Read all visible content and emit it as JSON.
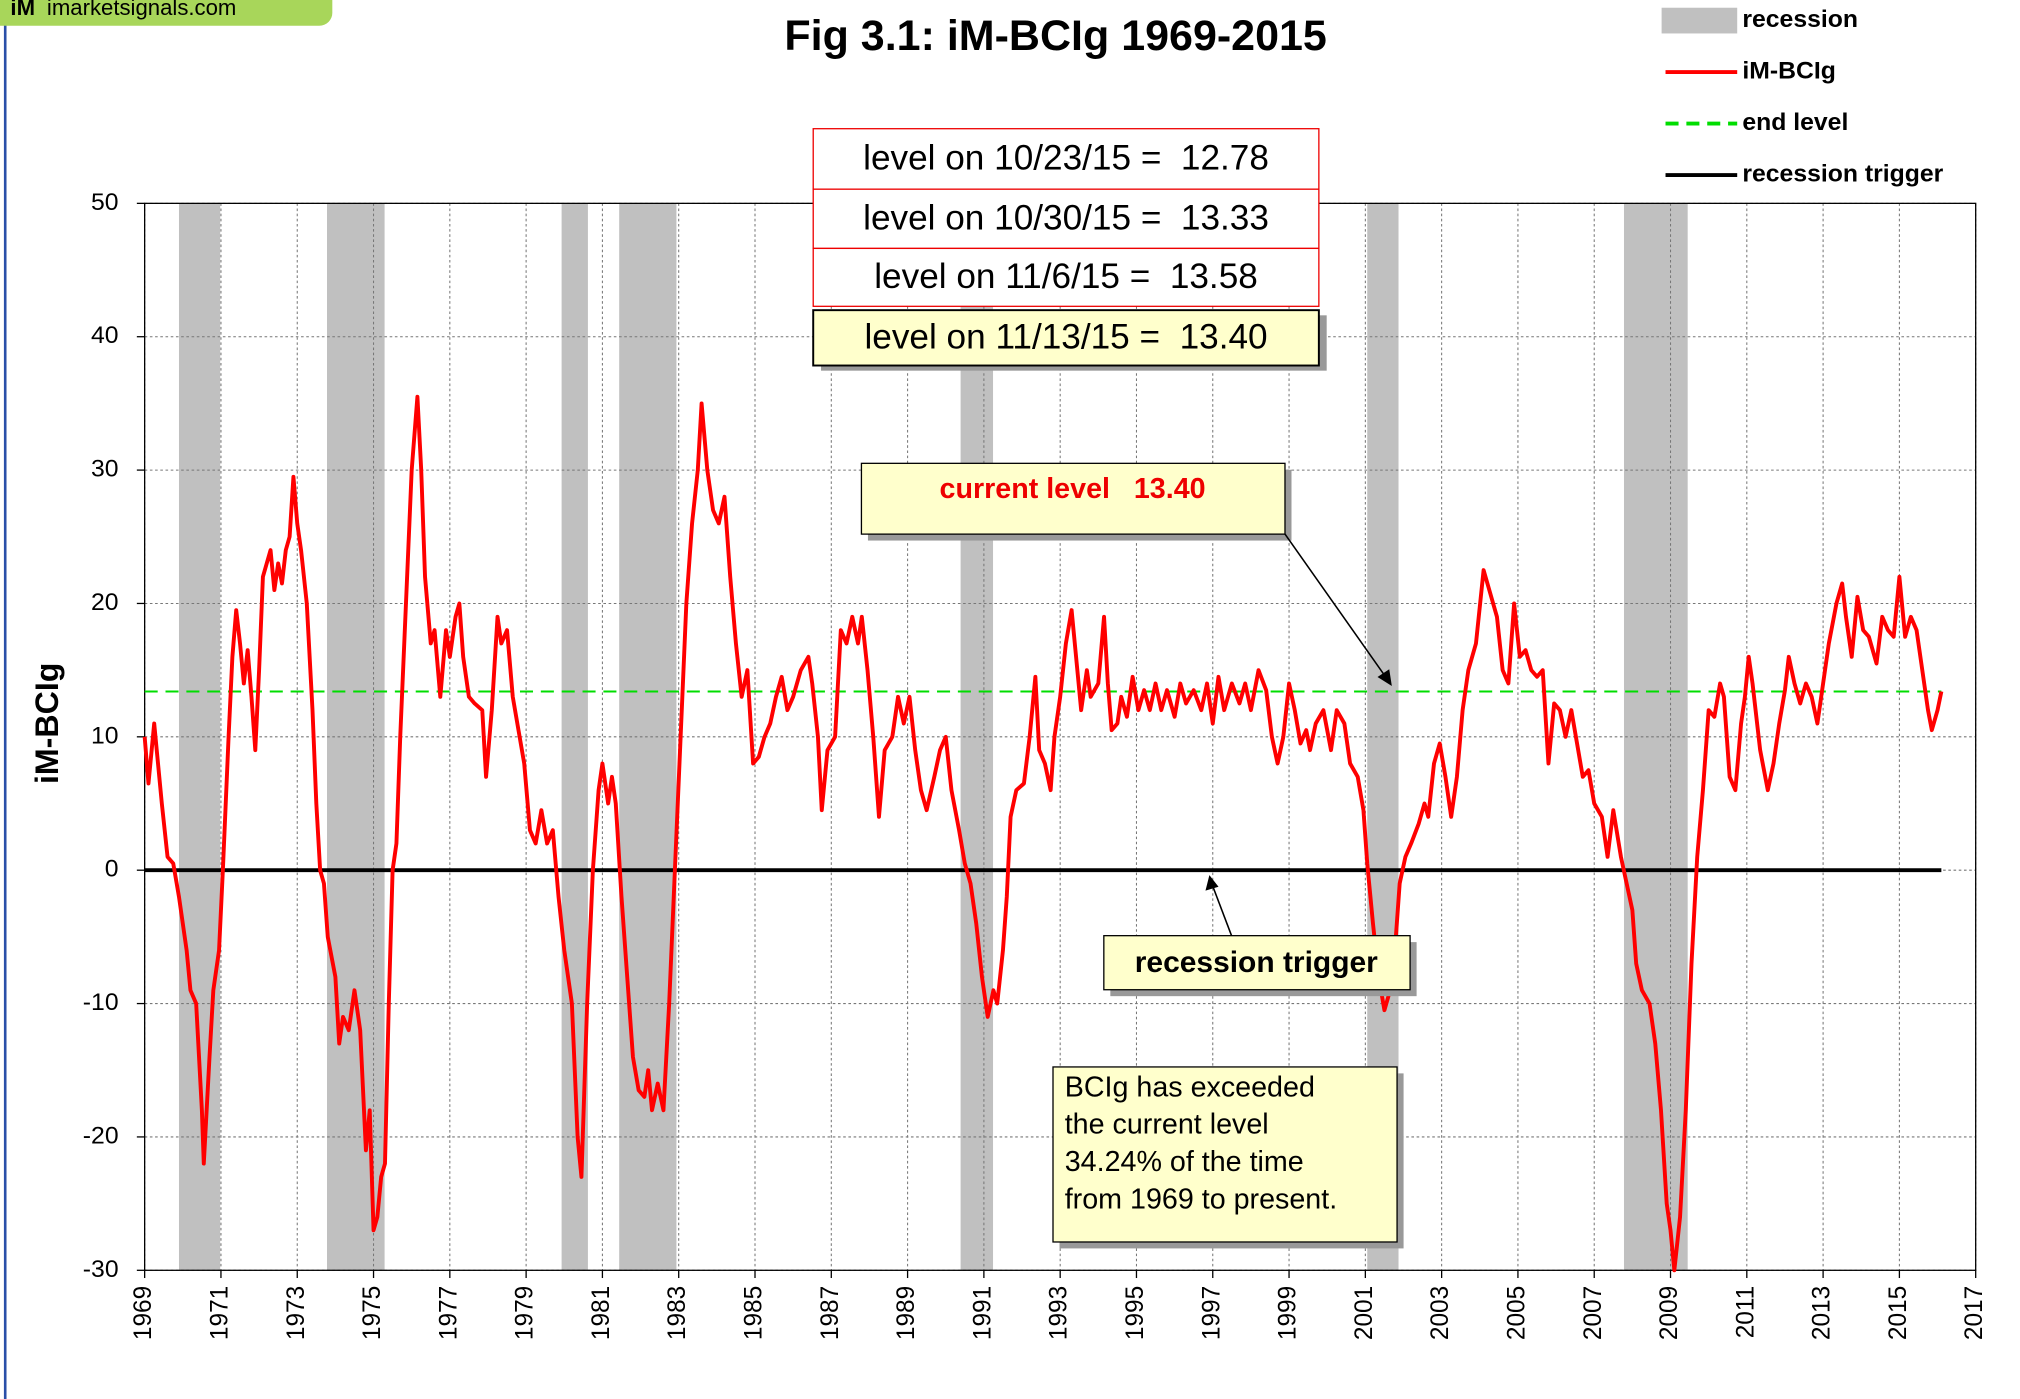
{
  "chart_data": {
    "type": "line",
    "title": "Fig 3.1:  iM-BCIg    1969-2015",
    "logo": {
      "mark": "iM",
      "text": "imarketsignals.com"
    },
    "y_label": "iM-BCIg",
    "xlim": [
      1969,
      2017
    ],
    "ylim": [
      -30,
      50
    ],
    "xticks": [
      1969,
      1971,
      1973,
      1975,
      1977,
      1979,
      1981,
      1983,
      1985,
      1987,
      1989,
      1991,
      1993,
      1995,
      1997,
      1999,
      2001,
      2003,
      2005,
      2007,
      2009,
      2011,
      2013,
      2015,
      2017
    ],
    "yticks": [
      -30,
      -20,
      -10,
      0,
      10,
      20,
      30,
      40,
      50
    ],
    "grid": true,
    "x": [
      1969.0,
      1969.1,
      1969.25,
      1969.45,
      1969.6,
      1969.75,
      1969.9,
      1970.1,
      1970.2,
      1970.35,
      1970.5,
      1970.55,
      1970.7,
      1970.8,
      1970.95,
      1971.05,
      1971.2,
      1971.3,
      1971.4,
      1971.5,
      1971.6,
      1971.7,
      1971.8,
      1971.9,
      1972.0,
      1972.1,
      1972.3,
      1972.4,
      1972.5,
      1972.6,
      1972.7,
      1972.8,
      1972.9,
      1973.0,
      1973.1,
      1973.25,
      1973.4,
      1973.5,
      1973.6,
      1973.7,
      1973.8,
      1974.0,
      1974.1,
      1974.2,
      1974.35,
      1974.5,
      1974.65,
      1974.8,
      1974.9,
      1975.0,
      1975.1,
      1975.2,
      1975.3,
      1975.4,
      1975.5,
      1975.6,
      1975.7,
      1975.85,
      1976.0,
      1976.15,
      1976.25,
      1976.35,
      1976.5,
      1976.6,
      1976.75,
      1976.9,
      1977.0,
      1977.15,
      1977.25,
      1977.35,
      1977.5,
      1977.65,
      1977.85,
      1977.95,
      1978.1,
      1978.25,
      1978.35,
      1978.5,
      1978.65,
      1978.8,
      1978.95,
      1979.1,
      1979.25,
      1979.4,
      1979.55,
      1979.7,
      1979.85,
      1980.0,
      1980.2,
      1980.35,
      1980.45,
      1980.6,
      1980.75,
      1980.9,
      1981.0,
      1981.15,
      1981.25,
      1981.35,
      1981.5,
      1981.65,
      1981.8,
      1981.95,
      1982.1,
      1982.2,
      1982.3,
      1982.45,
      1982.6,
      1982.75,
      1982.9,
      1983.05,
      1983.2,
      1983.35,
      1983.5,
      1983.6,
      1983.75,
      1983.9,
      1984.05,
      1984.2,
      1984.35,
      1984.5,
      1984.65,
      1984.8,
      1984.95,
      1985.1,
      1985.25,
      1985.4,
      1985.55,
      1985.7,
      1985.85,
      1986.0,
      1986.2,
      1986.4,
      1986.5,
      1986.65,
      1986.75,
      1986.9,
      1987.1,
      1987.25,
      1987.4,
      1987.55,
      1987.7,
      1987.8,
      1987.95,
      1988.1,
      1988.25,
      1988.4,
      1988.6,
      1988.75,
      1988.9,
      1989.05,
      1989.2,
      1989.35,
      1989.5,
      1989.7,
      1989.85,
      1990.0,
      1990.15,
      1990.35,
      1990.5,
      1990.65,
      1990.8,
      1990.95,
      1991.1,
      1991.25,
      1991.35,
      1991.5,
      1991.6,
      1991.7,
      1991.85,
      1992.05,
      1992.2,
      1992.35,
      1992.45,
      1992.6,
      1992.75,
      1992.85,
      1993.0,
      1993.15,
      1993.3,
      1993.4,
      1993.55,
      1993.7,
      1993.8,
      1994.0,
      1994.15,
      1994.25,
      1994.35,
      1994.5,
      1994.6,
      1994.75,
      1994.9,
      1995.05,
      1995.2,
      1995.35,
      1995.5,
      1995.65,
      1995.8,
      1996.0,
      1996.15,
      1996.3,
      1996.5,
      1996.7,
      1996.85,
      1997.0,
      1997.15,
      1997.3,
      1997.5,
      1997.7,
      1997.85,
      1998.0,
      1998.2,
      1998.4,
      1998.55,
      1998.7,
      1998.85,
      1999.0,
      1999.15,
      1999.3,
      1999.45,
      1999.55,
      1999.7,
      1999.9,
      2000.1,
      2000.25,
      2000.45,
      2000.6,
      2000.8,
      2000.95,
      2001.05,
      2001.2,
      2001.35,
      2001.5,
      2001.65,
      2001.8,
      2001.9,
      2002.05,
      2002.2,
      2002.4,
      2002.55,
      2002.65,
      2002.8,
      2002.95,
      2003.1,
      2003.25,
      2003.4,
      2003.55,
      2003.7,
      2003.9,
      2004.1,
      2004.25,
      2004.45,
      2004.6,
      2004.75,
      2004.9,
      2005.05,
      2005.2,
      2005.35,
      2005.5,
      2005.65,
      2005.8,
      2005.95,
      2006.1,
      2006.25,
      2006.4,
      2006.55,
      2006.7,
      2006.85,
      2007.0,
      2007.2,
      2007.35,
      2007.5,
      2007.7,
      2007.85,
      2008.0,
      2008.1,
      2008.25,
      2008.45,
      2008.6,
      2008.75,
      2008.9,
      2009.0,
      2009.1,
      2009.25,
      2009.4,
      2009.55,
      2009.7,
      2009.85,
      2010.0,
      2010.15,
      2010.3,
      2010.4,
      2010.55,
      2010.7,
      2010.85,
      2010.95,
      2011.05,
      2011.15,
      2011.35,
      2011.55,
      2011.7,
      2011.85,
      2012.0,
      2012.1,
      2012.25,
      2012.4,
      2012.55,
      2012.7,
      2012.85,
      2013.0,
      2013.15,
      2013.35,
      2013.5,
      2013.6,
      2013.75,
      2013.9,
      2014.05,
      2014.2,
      2014.4,
      2014.55,
      2014.7,
      2014.85,
      2015.0,
      2015.15,
      2015.3,
      2015.45,
      2015.6,
      2015.75,
      2015.85,
      2016.0,
      2016.1
    ],
    "series": [
      {
        "name": "iM-BCIg",
        "color": "#ff0000",
        "values": [
          10,
          6.5,
          11,
          5,
          1,
          0.5,
          -2,
          -6,
          -9,
          -10,
          -18,
          -22,
          -14,
          -9,
          -6,
          0,
          10,
          16,
          19.5,
          17,
          14,
          16.5,
          13,
          9,
          15,
          22,
          24,
          21,
          23,
          21.5,
          24,
          25,
          29.5,
          26,
          24,
          20,
          12,
          5,
          0,
          -1,
          -5,
          -8,
          -13,
          -11,
          -12,
          -9,
          -12,
          -21,
          -18,
          -27,
          -26,
          -23,
          -22,
          -10,
          0,
          2,
          10,
          20,
          30,
          35.5,
          30,
          22,
          17,
          18,
          13,
          18,
          16,
          19,
          20,
          16,
          13,
          12.5,
          12,
          7,
          12,
          19,
          17,
          18,
          13,
          10.5,
          8,
          3,
          2,
          4.5,
          2,
          3,
          -2,
          -6,
          -10,
          -20,
          -23,
          -10,
          0,
          6,
          8,
          5,
          7,
          5,
          -2,
          -8,
          -14,
          -16.5,
          -17,
          -15,
          -18,
          -16,
          -18,
          -10,
          0,
          10,
          20,
          26,
          30,
          35,
          30,
          27,
          26,
          28,
          22,
          17,
          13,
          15,
          8,
          8.5,
          10,
          11,
          13,
          14.5,
          12,
          13,
          15,
          16,
          14,
          10,
          4.5,
          9,
          10,
          18,
          17,
          19,
          17,
          19,
          15,
          10,
          4,
          9,
          10,
          13,
          11,
          13,
          9,
          6,
          4.5,
          7,
          9,
          10,
          6,
          3,
          0.5,
          -1,
          -4,
          -8,
          -11,
          -9,
          -10,
          -6,
          -2,
          4,
          6,
          6.5,
          10,
          14.5,
          9,
          8,
          6,
          10,
          13,
          17,
          19.5,
          16.5,
          12,
          15,
          13,
          14,
          19,
          14,
          10.5,
          11,
          13,
          11.5,
          14.5,
          12,
          13.5,
          12,
          14,
          12,
          13.5,
          11.5,
          14,
          12.5,
          13.5,
          12,
          14,
          11,
          14.5,
          12,
          14,
          12.5,
          14,
          12,
          15,
          13.5,
          10,
          8,
          10,
          14,
          12,
          9.5,
          10.5,
          9,
          11,
          12,
          9,
          12,
          11,
          8,
          7,
          4.5,
          0.5,
          -4,
          -8,
          -10.5,
          -9,
          -5,
          -1,
          1,
          2,
          3.5,
          5,
          4,
          8,
          9.5,
          7,
          4,
          7,
          12,
          15,
          17,
          22.5,
          21,
          19,
          15,
          14,
          20,
          16,
          16.5,
          15,
          14.5,
          15,
          8,
          12.5,
          12,
          10,
          12,
          9.5,
          7,
          7.5,
          5,
          4,
          1,
          4.5,
          1,
          -1,
          -3,
          -7,
          -9,
          -10,
          -13,
          -18,
          -25,
          -27,
          -30,
          -26,
          -18,
          -7,
          1,
          6,
          12,
          11.5,
          14,
          13,
          7,
          6,
          11,
          13,
          16,
          14,
          9,
          6,
          8,
          11,
          13.5,
          16,
          14,
          12.5,
          14,
          13,
          11,
          14,
          17,
          20,
          21.5,
          19,
          16,
          20.5,
          18,
          17.5,
          15.5,
          19,
          18,
          17.5,
          22,
          17.5,
          19,
          18,
          15,
          12,
          10.5,
          12,
          13.4
        ]
      }
    ],
    "recessions": {
      "name": "recession",
      "color": "#c0c0c0",
      "ranges": [
        [
          1969.9,
          1970.98
        ],
        [
          1973.78,
          1975.29
        ],
        [
          1979.93,
          1980.62
        ],
        [
          1981.44,
          1982.94
        ],
        [
          1990.39,
          1991.24
        ],
        [
          2001.05,
          2001.87
        ],
        [
          2007.78,
          2009.45
        ]
      ]
    },
    "reference_lines": [
      {
        "name": "end level",
        "value": 13.4,
        "color": "#00dd00",
        "dashed": true
      },
      {
        "name": "recession trigger",
        "value": 0,
        "color": "#000000",
        "dashed": false
      }
    ],
    "annotations": {
      "level_boxes": [
        "level on 10/23/15 =  12.78",
        "level on 10/30/15 =  13.33",
        "level on 11/6/15 =  13.58",
        "level on 11/13/15 =  13.40"
      ],
      "current_level": "current level   13.40",
      "trigger_note": "recession trigger",
      "exceed_note": [
        "BCIg has exceeded",
        "the current level",
        "34.24% of the time",
        "from 1969 to present."
      ]
    }
  }
}
